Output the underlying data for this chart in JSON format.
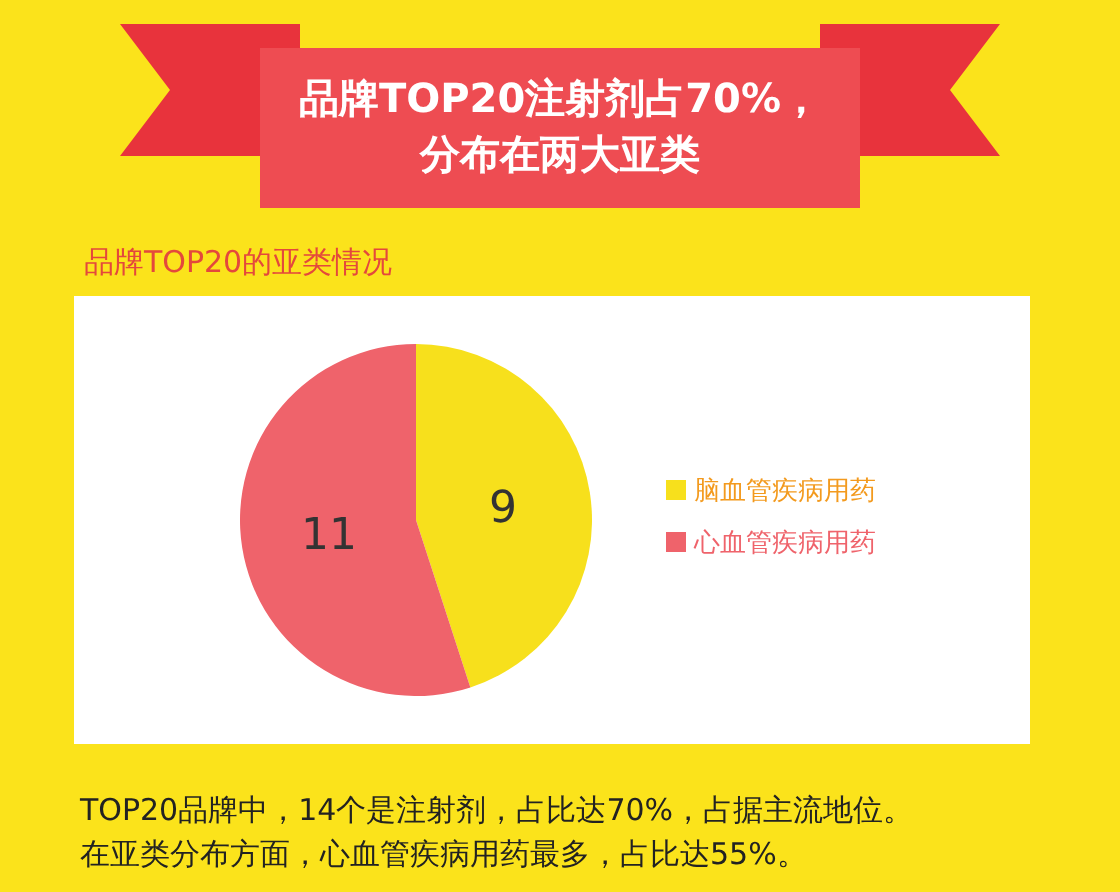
{
  "chart_data": {
    "type": "pie",
    "title": "品牌TOP20注射剂占70%，分布在两大亚类",
    "subtitle": "品牌TOP20的亚类情况",
    "categories": [
      "脑血管疾病用药",
      "心血管疾病用药"
    ],
    "values": [
      9,
      11
    ],
    "colors": [
      "#f7e01c",
      "#ef636b"
    ],
    "data_labels": true,
    "legend": "right",
    "annotations": [
      "TOP20品牌中，14个是注射剂，占比达70%，占据主流地位。",
      "在亚类分布方面，心血管疾病用药最多，占比达55%。"
    ]
  }
}
